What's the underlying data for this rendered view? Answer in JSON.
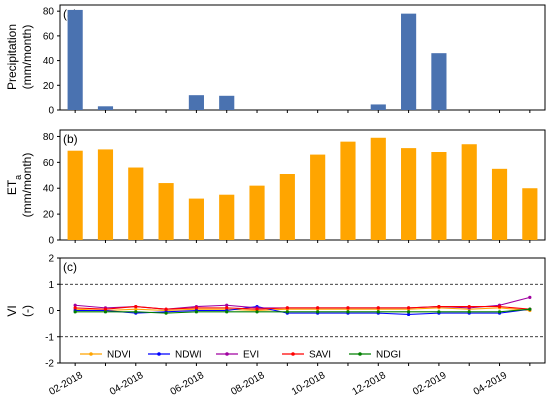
{
  "colors": {
    "precip": "#4a72b0",
    "eta": "#ffa500",
    "ndvi": "#ffa500",
    "ndwi": "#0000ff",
    "evi": "#a000a0",
    "savi": "#ff0000",
    "ndgi": "#008000",
    "axis": "#000000"
  },
  "x_tick_labels": [
    "02-2018",
    "04-2018",
    "06-2018",
    "08-2018",
    "10-2018",
    "12-2018",
    "02-2019",
    "04-2019"
  ],
  "chart_data": [
    {
      "type": "bar",
      "panel_label": "(a)",
      "ylabel_line1": "Precipitation",
      "ylabel_line2": "(mm/month)",
      "categories": [
        "02-2018",
        "03-2018",
        "04-2018",
        "05-2018",
        "06-2018",
        "07-2018",
        "08-2018",
        "09-2018",
        "10-2018",
        "11-2018",
        "12-2018",
        "01-2019",
        "02-2019",
        "03-2019",
        "04-2019",
        "05-2019"
      ],
      "values": [
        81,
        3,
        0,
        0,
        12,
        11.5,
        0,
        0,
        0,
        0,
        4.5,
        78,
        46,
        0,
        0,
        0
      ],
      "ylim": [
        0,
        85
      ],
      "yticks": [
        0,
        20,
        40,
        60,
        80
      ]
    },
    {
      "type": "bar",
      "panel_label": "(b)",
      "ylabel_main": "ET",
      "ylabel_sub": "a",
      "ylabel_line2": "(mm/month)",
      "categories": [
        "02-2018",
        "03-2018",
        "04-2018",
        "05-2018",
        "06-2018",
        "07-2018",
        "08-2018",
        "09-2018",
        "10-2018",
        "11-2018",
        "12-2018",
        "01-2019",
        "02-2019",
        "03-2019",
        "04-2019",
        "05-2019"
      ],
      "values": [
        69,
        70,
        56,
        44,
        32,
        35,
        42,
        51,
        66,
        76,
        79,
        71,
        68,
        74,
        55,
        40
      ],
      "ylim": [
        0,
        85
      ],
      "yticks": [
        0,
        20,
        40,
        60,
        80
      ]
    },
    {
      "type": "line",
      "panel_label": "(c)",
      "ylabel_line1": "VI",
      "ylabel_line2": "(-)",
      "ylim": [
        -2,
        2
      ],
      "yticks": [
        -2,
        -1,
        0,
        1,
        2
      ],
      "reference_lines": [
        1,
        -1
      ],
      "categories": [
        "02-2018",
        "03-2018",
        "04-2018",
        "05-2018",
        "06-2018",
        "07-2018",
        "08-2018",
        "09-2018",
        "10-2018",
        "11-2018",
        "12-2018",
        "01-2019",
        "02-2019",
        "03-2019",
        "04-2019",
        "05-2019"
      ],
      "series": [
        {
          "name": "NDVI",
          "values": [
            0.05,
            0.0,
            0.05,
            0.0,
            0.05,
            0.05,
            0.0,
            0.05,
            0.05,
            0.05,
            0.05,
            0.05,
            0.1,
            0.05,
            0.1,
            0.0
          ]
        },
        {
          "name": "NDWI",
          "values": [
            0.0,
            0.0,
            -0.1,
            -0.05,
            0.0,
            0.0,
            0.15,
            -0.1,
            -0.1,
            -0.1,
            -0.1,
            -0.15,
            -0.1,
            -0.1,
            -0.1,
            0.05
          ]
        },
        {
          "name": "EVI",
          "values": [
            0.2,
            0.1,
            0.15,
            0.05,
            0.15,
            0.2,
            0.1,
            0.1,
            0.1,
            0.1,
            0.1,
            0.1,
            0.15,
            0.1,
            0.2,
            0.5
          ]
        },
        {
          "name": "SAVI",
          "values": [
            0.1,
            0.05,
            0.15,
            0.05,
            0.1,
            0.1,
            0.05,
            0.1,
            0.1,
            0.1,
            0.1,
            0.1,
            0.15,
            0.15,
            0.15,
            0.05
          ]
        },
        {
          "name": "NDGI",
          "values": [
            -0.05,
            -0.05,
            -0.05,
            -0.1,
            -0.05,
            -0.05,
            -0.05,
            -0.05,
            -0.05,
            -0.05,
            -0.05,
            -0.05,
            -0.05,
            -0.05,
            -0.05,
            0.05
          ]
        }
      ],
      "legend_position": "bottom"
    }
  ]
}
